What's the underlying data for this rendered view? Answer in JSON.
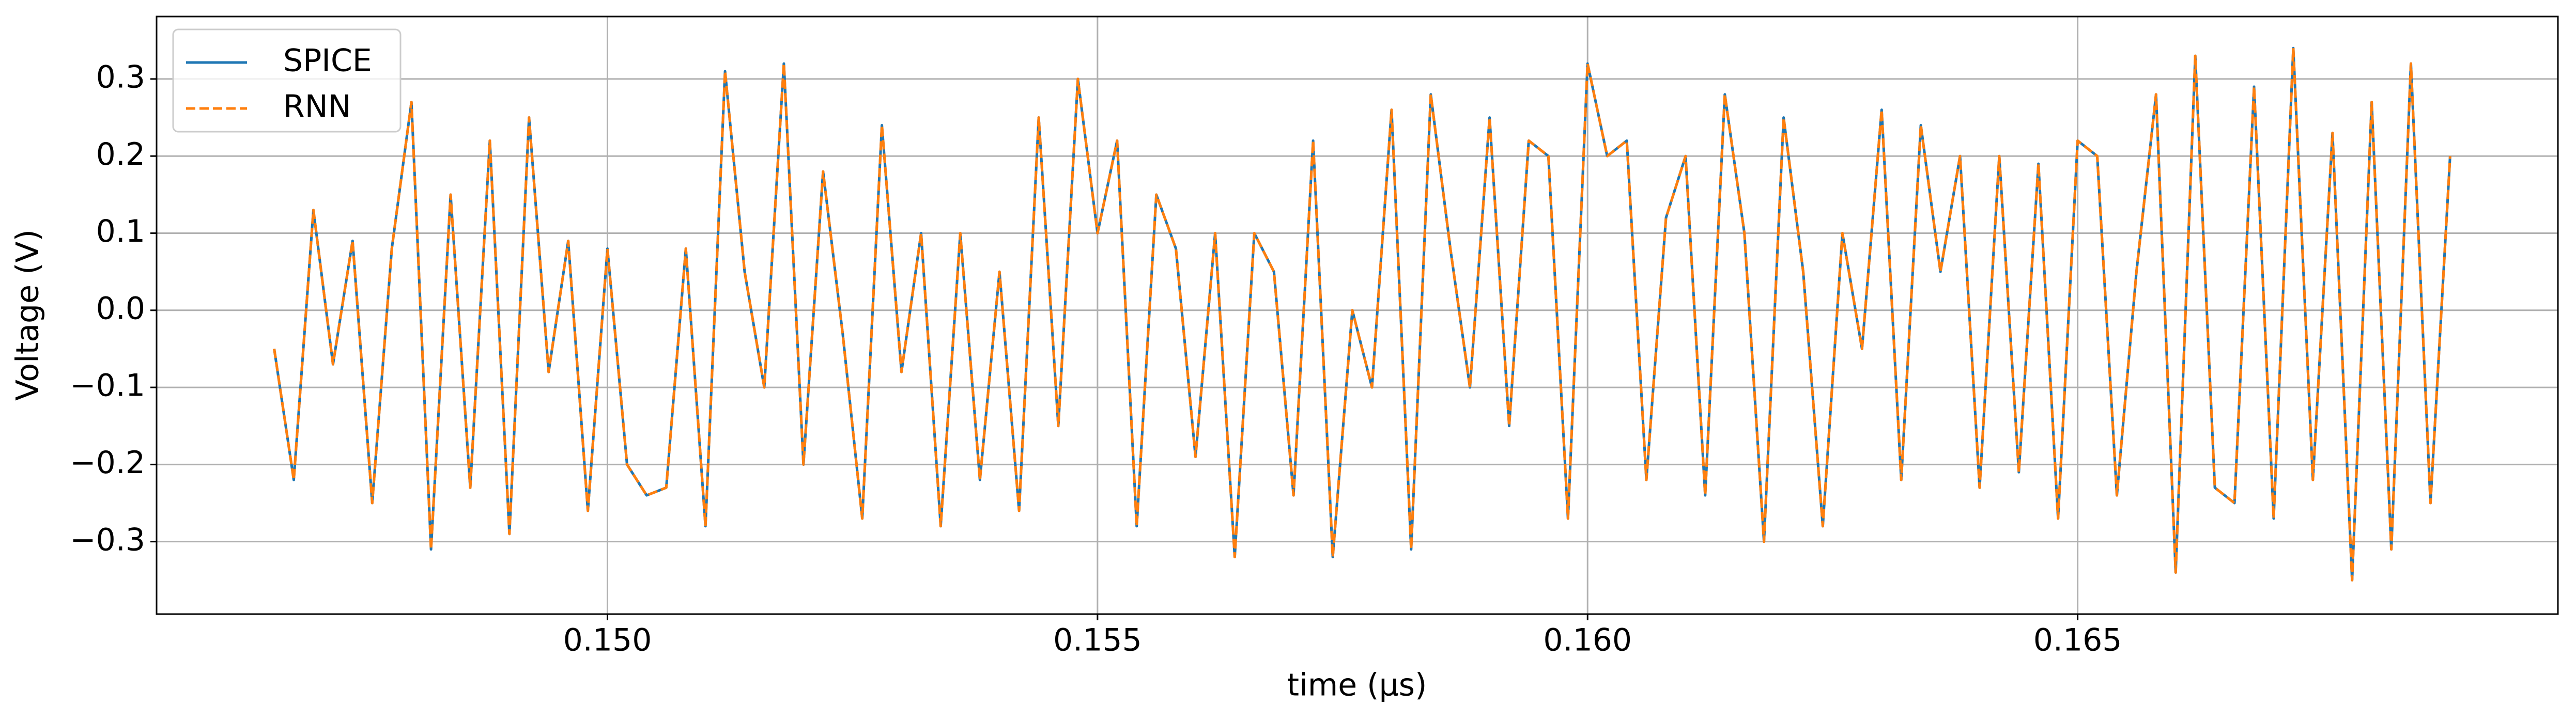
{
  "chart_data": {
    "type": "line",
    "xlabel": "time (μs)",
    "ylabel": "Voltage (V)",
    "x": [
      0.1466,
      0.1468,
      0.147,
      0.1472,
      0.1474,
      0.1476,
      0.1478,
      0.148,
      0.1482,
      0.1484,
      0.1486,
      0.1488,
      0.149,
      0.1492,
      0.1494,
      0.1496,
      0.1498,
      0.15,
      0.1502,
      0.1504,
      0.1506,
      0.1508,
      0.151,
      0.1512,
      0.1514,
      0.1516,
      0.1518,
      0.152,
      0.1522,
      0.1524,
      0.1526,
      0.1528,
      0.153,
      0.1532,
      0.1534,
      0.1536,
      0.1538,
      0.154,
      0.1542,
      0.1544,
      0.1546,
      0.1548,
      0.155,
      0.1552,
      0.1554,
      0.1556,
      0.1558,
      0.156,
      0.1562,
      0.1564,
      0.1566,
      0.1568,
      0.157,
      0.1572,
      0.1574,
      0.1576,
      0.1578,
      0.158,
      0.1582,
      0.1584,
      0.1586,
      0.1588,
      0.159,
      0.1592,
      0.1594,
      0.1596,
      0.1598,
      0.16,
      0.1602,
      0.1604,
      0.1606,
      0.1608,
      0.161,
      0.1612,
      0.1614,
      0.1616,
      0.1618,
      0.162,
      0.1622,
      0.1624,
      0.1626,
      0.1628,
      0.163,
      0.1632,
      0.1634,
      0.1636,
      0.1638,
      0.164,
      0.1642,
      0.1644,
      0.1646,
      0.1648,
      0.165,
      0.1652,
      0.1654,
      0.1656,
      0.1658,
      0.166,
      0.1662,
      0.1664,
      0.1666,
      0.1668,
      0.167,
      0.1672,
      0.1674,
      0.1676,
      0.1678,
      0.168,
      0.1682,
      0.1684,
      0.1686,
      0.1688
    ],
    "series": [
      {
        "name": "SPICE",
        "color": "#1f77b4",
        "linestyle": "solid",
        "values": [
          -0.05,
          -0.22,
          0.13,
          -0.07,
          0.09,
          -0.25,
          0.08,
          0.27,
          -0.31,
          0.15,
          -0.23,
          0.22,
          -0.29,
          0.25,
          -0.08,
          0.09,
          -0.26,
          0.08,
          -0.2,
          -0.24,
          -0.23,
          0.08,
          -0.28,
          0.31,
          0.05,
          -0.1,
          0.32,
          -0.2,
          0.18,
          -0.03,
          -0.27,
          0.24,
          -0.08,
          0.1,
          -0.28,
          0.1,
          -0.22,
          0.05,
          -0.26,
          0.25,
          -0.15,
          0.3,
          0.1,
          0.22,
          -0.28,
          0.15,
          0.08,
          -0.19,
          0.1,
          -0.32,
          0.1,
          0.05,
          -0.24,
          0.22,
          -0.32,
          0.0,
          -0.1,
          0.26,
          -0.31,
          0.28,
          0.08,
          -0.1,
          0.25,
          -0.15,
          0.22,
          0.2,
          -0.27,
          0.32,
          0.2,
          0.22,
          -0.22,
          0.12,
          0.2,
          -0.24,
          0.28,
          0.1,
          -0.3,
          0.25,
          0.05,
          -0.28,
          0.1,
          -0.05,
          0.26,
          -0.22,
          0.24,
          0.05,
          0.2,
          -0.23,
          0.2,
          -0.21,
          0.19,
          -0.27,
          0.22,
          0.2,
          -0.24,
          0.05,
          0.28,
          -0.34,
          0.33,
          -0.23,
          -0.25,
          0.29,
          -0.27,
          0.34,
          -0.22,
          0.23,
          -0.35,
          0.27,
          -0.31,
          0.32,
          -0.25,
          0.2
        ]
      },
      {
        "name": "RNN",
        "color": "#ff7f0e",
        "linestyle": "dashed",
        "values": [
          -0.05,
          -0.22,
          0.13,
          -0.07,
          0.09,
          -0.25,
          0.08,
          0.27,
          -0.31,
          0.15,
          -0.23,
          0.22,
          -0.29,
          0.25,
          -0.08,
          0.09,
          -0.26,
          0.08,
          -0.2,
          -0.24,
          -0.23,
          0.08,
          -0.28,
          0.31,
          0.05,
          -0.1,
          0.32,
          -0.2,
          0.18,
          -0.03,
          -0.27,
          0.24,
          -0.08,
          0.1,
          -0.28,
          0.1,
          -0.22,
          0.05,
          -0.26,
          0.25,
          -0.15,
          0.3,
          0.1,
          0.22,
          -0.28,
          0.15,
          0.08,
          -0.19,
          0.1,
          -0.32,
          0.1,
          0.05,
          -0.24,
          0.22,
          -0.32,
          0.0,
          -0.1,
          0.26,
          -0.31,
          0.28,
          0.08,
          -0.1,
          0.25,
          -0.15,
          0.22,
          0.2,
          -0.27,
          0.32,
          0.2,
          0.22,
          -0.22,
          0.12,
          0.2,
          -0.24,
          0.28,
          0.1,
          -0.3,
          0.25,
          0.05,
          -0.28,
          0.1,
          -0.05,
          0.26,
          -0.22,
          0.24,
          0.05,
          0.2,
          -0.23,
          0.2,
          -0.21,
          0.19,
          -0.27,
          0.22,
          0.2,
          -0.24,
          0.05,
          0.28,
          -0.34,
          0.33,
          -0.23,
          -0.25,
          0.29,
          -0.27,
          0.34,
          -0.22,
          0.23,
          -0.35,
          0.27,
          -0.31,
          0.32,
          -0.25,
          0.2
        ]
      }
    ],
    "xlim": [
      0.1454,
      0.1699
    ],
    "ylim": [
      -0.394,
      0.381
    ],
    "xticks": [
      {
        "value": 0.15,
        "label": "0.150"
      },
      {
        "value": 0.155,
        "label": "0.155"
      },
      {
        "value": 0.16,
        "label": "0.160"
      },
      {
        "value": 0.165,
        "label": "0.165"
      }
    ],
    "yticks": [
      {
        "value": -0.3,
        "label": "−0.3"
      },
      {
        "value": -0.2,
        "label": "−0.2"
      },
      {
        "value": -0.1,
        "label": "−0.1"
      },
      {
        "value": 0,
        "label": "0.0"
      },
      0.1,
      0.2,
      0.3
    ],
    "grid": true,
    "legend": "upper left"
  }
}
